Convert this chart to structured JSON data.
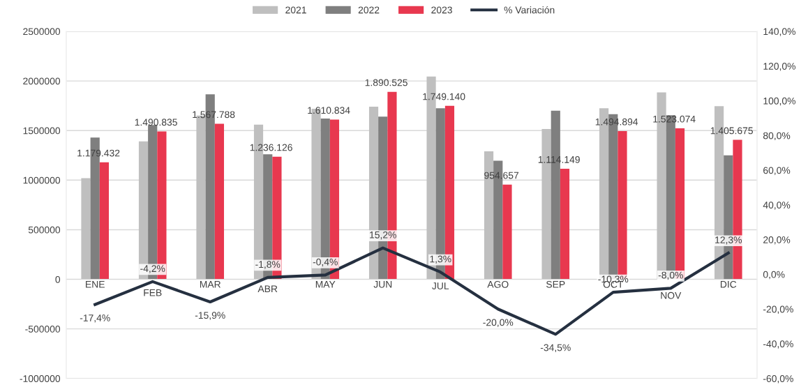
{
  "chart_data": {
    "type": "bar",
    "categories": [
      "ENE",
      "FEB",
      "MAR",
      "ABR",
      "MAY",
      "JUN",
      "JUL",
      "AGO",
      "SEP",
      "OCT",
      "NOV",
      "DIC"
    ],
    "series": [
      {
        "name": "2021",
        "color": "#bfbfbf",
        "values": [
          1020000,
          1390000,
          1650000,
          1560000,
          1720000,
          1740000,
          2045000,
          1290000,
          1515000,
          1725000,
          1885000,
          1745000
        ]
      },
      {
        "name": "2022",
        "color": "#7f7f7f",
        "values": [
          1430000,
          1555000,
          1865000,
          1260000,
          1620000,
          1640000,
          1725000,
          1195000,
          1700000,
          1665000,
          1655000,
          1250000
        ]
      },
      {
        "name": "2023",
        "color": "#e8384f",
        "values": [
          1179432,
          1490835,
          1567788,
          1236126,
          1610834,
          1890525,
          1749140,
          954657,
          1114149,
          1494894,
          1523074,
          1405675
        ],
        "value_labels": [
          "1.179.432",
          "1.490.835",
          "1.567.788",
          "1.236.126",
          "1.610.834",
          "1.890.525",
          "1.749.140",
          "954.657",
          "1.114.149",
          "1.494.894",
          "1.523.074",
          "1.405.675"
        ]
      },
      {
        "name": "% Variación",
        "type": "line",
        "axis": "y2",
        "color": "#253040",
        "values": [
          -17.4,
          -4.2,
          -15.9,
          -1.8,
          -0.4,
          15.2,
          1.3,
          -20.0,
          -34.5,
          -10.3,
          -8.0,
          12.3
        ],
        "value_labels": [
          "-17,4%",
          "-4,2%",
          "-15,9%",
          "-1,8%",
          "-0,4%",
          "15,2%",
          "1,3%",
          "-20,0%",
          "-34,5%",
          "-10,3%",
          "-8,0%",
          "12,3%"
        ]
      }
    ],
    "ylim": [
      -1000000,
      2500000
    ],
    "yticks": [
      -1000000,
      -500000,
      0,
      500000,
      1000000,
      1500000,
      2000000,
      2500000
    ],
    "y2lim": [
      -60,
      140
    ],
    "y2ticks": [
      {
        "value": -60,
        "label": "-60,0%"
      },
      {
        "value": -40,
        "label": "-40,0%"
      },
      {
        "value": -20,
        "label": "-20,0%"
      },
      {
        "value": 0,
        "label": "0,0%"
      },
      {
        "value": 20,
        "label": "20,0%"
      },
      {
        "value": 40,
        "label": "40,0%"
      },
      {
        "value": 60,
        "label": "60,0%"
      },
      {
        "value": 80,
        "label": "80,0%"
      },
      {
        "value": 100,
        "label": "100,0%"
      },
      {
        "value": 120,
        "label": "120,0%"
      },
      {
        "value": 140,
        "label": "140,0%"
      }
    ],
    "grid": "y",
    "legend": "top",
    "marker": "none",
    "line_style": "solid"
  }
}
